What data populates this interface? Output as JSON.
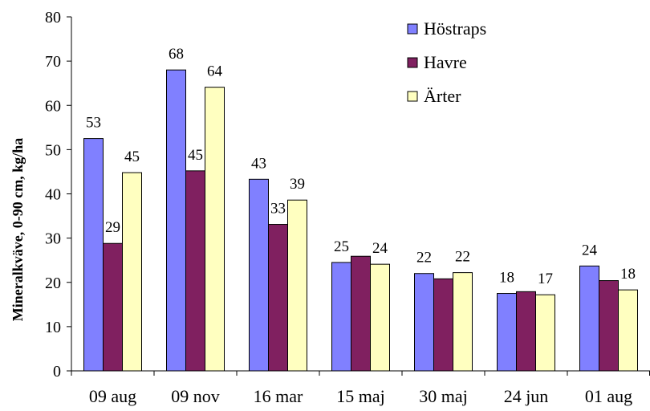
{
  "chart_data": {
    "type": "bar",
    "title": "",
    "xlabel": "",
    "ylabel": "Mineralkväve, 0-90 cm, kg/ha",
    "ylim": [
      0,
      80
    ],
    "yticks": [
      0,
      10,
      20,
      30,
      40,
      50,
      60,
      70,
      80
    ],
    "categories": [
      "09 aug",
      "09 nov",
      "16 mar",
      "15 maj",
      "30 maj",
      "24 jun",
      "01 aug"
    ],
    "series": [
      {
        "name": "Höstraps",
        "color": "#8080ff",
        "values": [
          52.5,
          68,
          43.3,
          24.5,
          22,
          17.5,
          23.7
        ],
        "labels": [
          "53",
          "68",
          "43",
          "25",
          "22",
          "18",
          "24"
        ]
      },
      {
        "name": "Havre",
        "color": "#802060",
        "values": [
          28.8,
          45.2,
          33.1,
          25.9,
          20.8,
          17.9,
          20.4
        ],
        "labels": [
          "29",
          "45",
          "33",
          "",
          "",
          "",
          ""
        ]
      },
      {
        "name": "Ärter",
        "color": "#ffffc0",
        "values": [
          44.8,
          64.1,
          38.6,
          24.1,
          22.2,
          17.2,
          18.3
        ],
        "labels": [
          "45",
          "64",
          "39",
          "24",
          "22",
          "17",
          "18"
        ]
      }
    ],
    "legend": {
      "position": "top-right"
    },
    "grid": false
  }
}
